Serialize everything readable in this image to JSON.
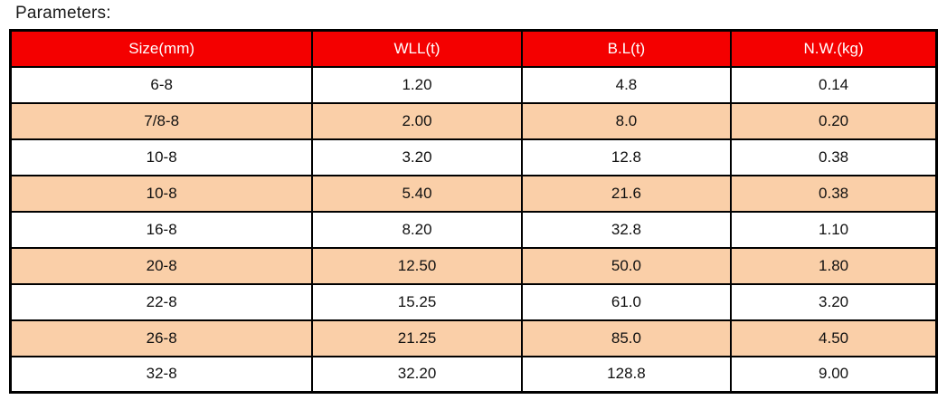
{
  "page": {
    "title": "Parameters:"
  },
  "table": {
    "headers": [
      "Size(mm)",
      "WLL(t)",
      "B.L(t)",
      "N.W.(kg)"
    ],
    "rows": [
      [
        "6-8",
        "1.20",
        "4.8",
        "0.14"
      ],
      [
        "7/8-8",
        "2.00",
        "8.0",
        "0.20"
      ],
      [
        "10-8",
        "3.20",
        "12.8",
        "0.38"
      ],
      [
        "10-8",
        "5.40",
        "21.6",
        "0.38"
      ],
      [
        "16-8",
        "8.20",
        "32.8",
        "1.10"
      ],
      [
        "20-8",
        "12.50",
        "50.0",
        "1.80"
      ],
      [
        "22-8",
        "15.25",
        "61.0",
        "3.20"
      ],
      [
        "26-8",
        "21.25",
        "85.0",
        "4.50"
      ],
      [
        "32-8",
        "32.20",
        "128.8",
        "9.00"
      ]
    ],
    "colors": {
      "header_bg": "#f40000",
      "header_text": "#ffffff",
      "row_bg": "#ffffff",
      "row_alt_bg": "#facfa8",
      "border": "#000000"
    }
  }
}
